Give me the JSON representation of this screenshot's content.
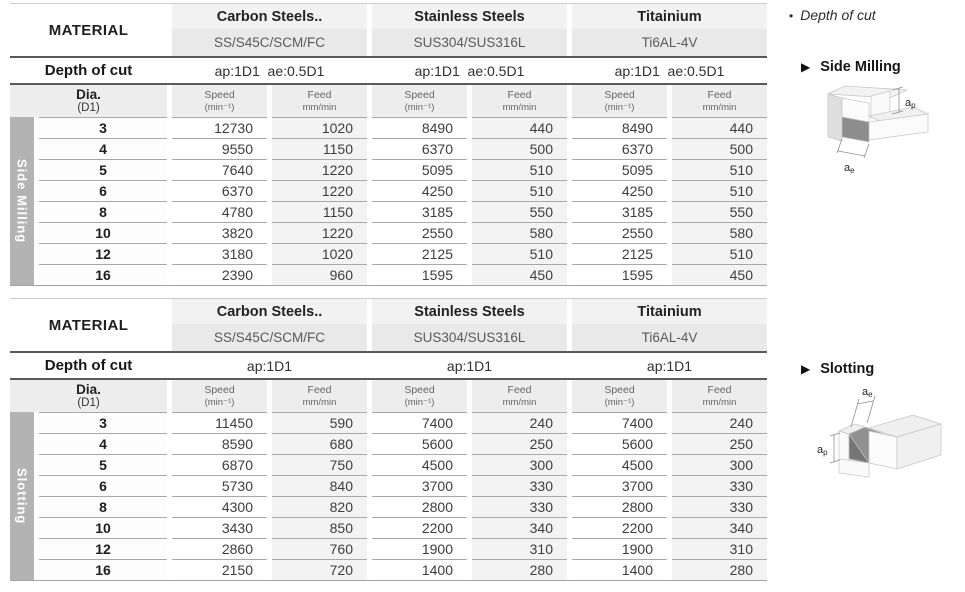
{
  "colors": {
    "sidebar_gray": "#b3b3b3",
    "header_gray": "#ededed",
    "grade_gray": "#e9e9e9",
    "feed_column_tint": "#f3f3f3",
    "rule_dark": "#595959",
    "rule_light": "#a8a8a8"
  },
  "tables": [
    {
      "section_label": "Side Milling",
      "material_header": "MATERIAL",
      "depth_header": "Depth of cut",
      "dia_header_line1": "Dia.",
      "dia_header_line2": "(D1)",
      "speed_label": "Speed",
      "speed_unit": "(min⁻¹)",
      "feed_label": "Feed",
      "feed_unit": "mm/min",
      "materials": [
        {
          "name": "Carbon Steels..",
          "grade": "SS/S45C/SCM/FC",
          "depth_of_cut": "ap:1D1  ae:0.5D1"
        },
        {
          "name": "Stainless Steels",
          "grade": "SUS304/SUS316L",
          "depth_of_cut": "ap:1D1  ae:0.5D1"
        },
        {
          "name": "Titainium",
          "grade": "Ti6AL-4V",
          "depth_of_cut": "ap:1D1  ae:0.5D1"
        }
      ],
      "rows": [
        {
          "dia": "3",
          "cells": [
            "12730",
            "1020",
            "8490",
            "440",
            "8490",
            "440"
          ]
        },
        {
          "dia": "4",
          "cells": [
            "9550",
            "1150",
            "6370",
            "500",
            "6370",
            "500"
          ]
        },
        {
          "dia": "5",
          "cells": [
            "7640",
            "1220",
            "5095",
            "510",
            "5095",
            "510"
          ]
        },
        {
          "dia": "6",
          "cells": [
            "6370",
            "1220",
            "4250",
            "510",
            "4250",
            "510"
          ]
        },
        {
          "dia": "8",
          "cells": [
            "4780",
            "1150",
            "3185",
            "550",
            "3185",
            "550"
          ]
        },
        {
          "dia": "10",
          "cells": [
            "3820",
            "1220",
            "2550",
            "580",
            "2550",
            "580"
          ]
        },
        {
          "dia": "12",
          "cells": [
            "3180",
            "1020",
            "2125",
            "510",
            "2125",
            "510"
          ]
        },
        {
          "dia": "16",
          "cells": [
            "2390",
            "960",
            "1595",
            "450",
            "1595",
            "450"
          ]
        }
      ]
    },
    {
      "section_label": "Slotting",
      "material_header": "MATERIAL",
      "depth_header": "Depth of cut",
      "dia_header_line1": "Dia.",
      "dia_header_line2": "(D1)",
      "speed_label": "Speed",
      "speed_unit": "(min⁻¹)",
      "feed_label": "Feed",
      "feed_unit": "mm/min",
      "materials": [
        {
          "name": "Carbon Steels..",
          "grade": "SS/S45C/SCM/FC",
          "depth_of_cut": "ap:1D1"
        },
        {
          "name": "Stainless Steels",
          "grade": "SUS304/SUS316L",
          "depth_of_cut": "ap:1D1"
        },
        {
          "name": "Titainium",
          "grade": "Ti6AL-4V",
          "depth_of_cut": "ap:1D1"
        }
      ],
      "rows": [
        {
          "dia": "3",
          "cells": [
            "11450",
            "590",
            "7400",
            "240",
            "7400",
            "240"
          ]
        },
        {
          "dia": "4",
          "cells": [
            "8590",
            "680",
            "5600",
            "250",
            "5600",
            "250"
          ]
        },
        {
          "dia": "5",
          "cells": [
            "6870",
            "750",
            "4500",
            "300",
            "4500",
            "300"
          ]
        },
        {
          "dia": "6",
          "cells": [
            "5730",
            "840",
            "3700",
            "330",
            "3700",
            "330"
          ]
        },
        {
          "dia": "8",
          "cells": [
            "4300",
            "820",
            "2800",
            "330",
            "2800",
            "330"
          ]
        },
        {
          "dia": "10",
          "cells": [
            "3430",
            "850",
            "2200",
            "340",
            "2200",
            "340"
          ]
        },
        {
          "dia": "12",
          "cells": [
            "2860",
            "760",
            "1900",
            "310",
            "1900",
            "310"
          ]
        },
        {
          "dia": "16",
          "cells": [
            "2150",
            "720",
            "1400",
            "280",
            "1400",
            "280"
          ]
        }
      ]
    }
  ],
  "side_panel": {
    "note_bullet": "•",
    "note_text": "Depth of cut",
    "sections": [
      {
        "marker": "▶",
        "title": "Side Milling",
        "ap_base": "a",
        "ap_sub": "p",
        "ae_base": "a",
        "ae_sub": "e"
      },
      {
        "marker": "▶",
        "title": "Slotting",
        "ap_base": "a",
        "ap_sub": "p",
        "ae_base": "a",
        "ae_sub": "e"
      }
    ]
  }
}
